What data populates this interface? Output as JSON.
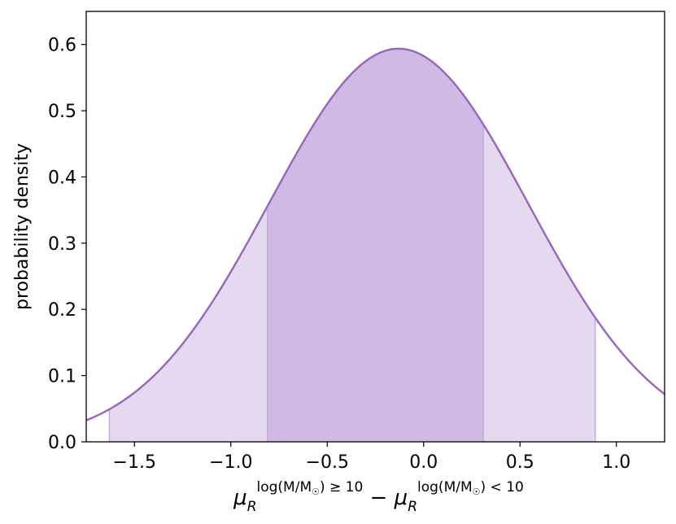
{
  "chart_data": {
    "type": "area",
    "title": "",
    "ylabel": "probability density",
    "xlabel": {
      "mu": "μ",
      "sub": "R",
      "sup_left": "log(M/M",
      "sup_left_close": ") ≥ 10",
      "minus": " − ",
      "sup_right": "log(M/M",
      "sup_right_close": ") < 10",
      "sun": "☉"
    },
    "xlim": [
      -1.75,
      1.25
    ],
    "ylim": [
      0.0,
      0.65
    ],
    "x_ticks": [
      -1.5,
      -1.0,
      -0.5,
      0.0,
      0.5,
      1.0
    ],
    "x_tick_labels": [
      "−1.5",
      "−1.0",
      "−0.5",
      "0.0",
      "0.5",
      "1.0"
    ],
    "y_ticks": [
      0.0,
      0.1,
      0.2,
      0.3,
      0.4,
      0.5,
      0.6
    ],
    "y_tick_labels": [
      "0.0",
      "0.1",
      "0.2",
      "0.3",
      "0.4",
      "0.5",
      "0.6"
    ],
    "grid": false,
    "series": [
      {
        "distribution": "gaussian",
        "mean": -0.13,
        "sigma": 0.672,
        "color": "#9467bd"
      }
    ],
    "credible_intervals": [
      {
        "level": "outer",
        "range": [
          -1.63,
          0.89
        ],
        "color": "#e4d9ef"
      },
      {
        "level": "inner",
        "range": [
          -0.81,
          0.31
        ],
        "color": "#cfbae3"
      }
    ]
  }
}
